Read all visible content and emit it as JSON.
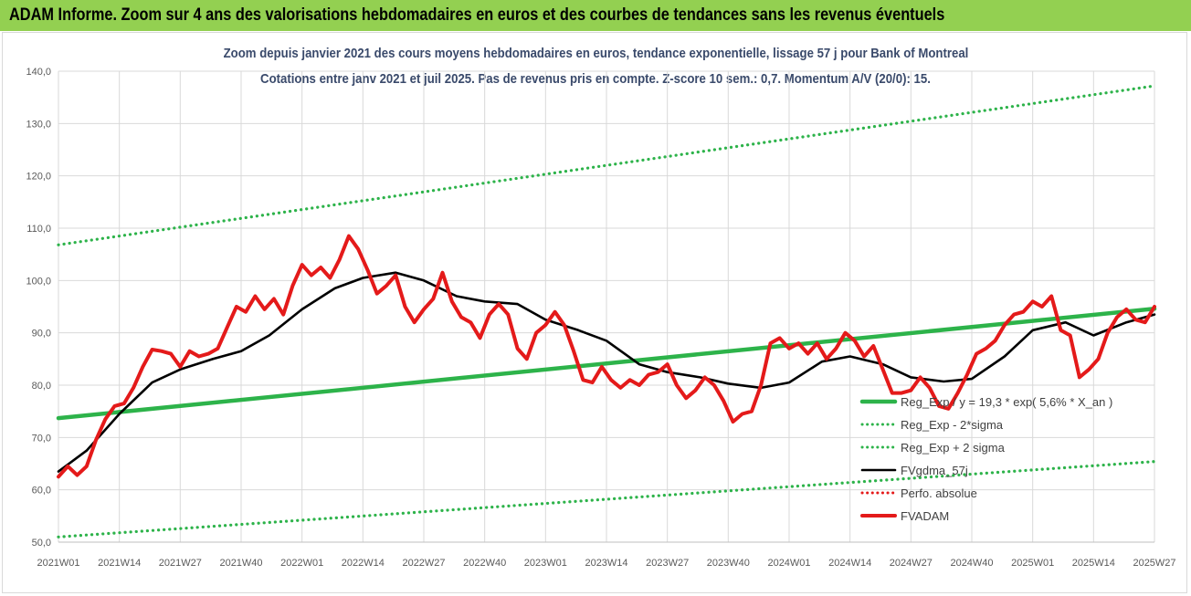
{
  "header": {
    "title": "ADAM Informe. Zoom sur 4 ans des valorisations hebdomadaires en euros et des courbes de tendances sans les revenus éventuels"
  },
  "chart_data": {
    "type": "line",
    "title": "Zoom depuis janvier 2021 des cours moyens hebdomadaires en euros, tendance exponentielle, lissage 57 j pour Bank of Montreal",
    "subtitle": "Cotations entre janv 2021 et juil 2025. Pas de revenus pris en compte. Z-score 10 sem.: 0,7. Momentum A/V (20/0): 15.",
    "xlabel": "",
    "ylabel": "",
    "ylim": [
      50,
      140
    ],
    "y_ticks": [
      "50,0",
      "60,0",
      "70,0",
      "80,0",
      "90,0",
      "100,0",
      "110,0",
      "120,0",
      "130,0",
      "140,0"
    ],
    "x_ticks": [
      "2021W01",
      "2021W14",
      "2021W27",
      "2021W40",
      "2022W01",
      "2022W14",
      "2022W27",
      "2022W40",
      "2023W01",
      "2023W14",
      "2023W27",
      "2023W40",
      "2024W01",
      "2024W14",
      "2024W27",
      "2024W40",
      "2025W01",
      "2025W14",
      "2025W27"
    ],
    "n_weeks": 235,
    "grid": true,
    "legend_position": "bottom-right",
    "series": [
      {
        "name": "Reg_Exp / y = 19,3 * exp( 5,6% * X_an )",
        "color": "#2db34a",
        "style": "solid",
        "x": [
          0,
          234
        ],
        "values": [
          73.7,
          94.6
        ]
      },
      {
        "name": "Reg_Exp - 2*sigma",
        "color": "#2db34a",
        "style": "dotted",
        "x": [
          0,
          234
        ],
        "values": [
          51.0,
          65.4
        ]
      },
      {
        "name": "Reg_Exp + 2 sigma",
        "color": "#2db34a",
        "style": "dotted",
        "x": [
          0,
          234
        ],
        "values": [
          106.8,
          137.2
        ]
      },
      {
        "name": "FVgdma_57j",
        "color": "#000000",
        "style": "solid",
        "x": [
          0,
          6,
          13,
          20,
          26,
          33,
          39,
          45,
          52,
          59,
          65,
          72,
          78,
          85,
          91,
          98,
          104,
          111,
          117,
          124,
          130,
          137,
          143,
          150,
          156,
          163,
          169,
          176,
          182,
          189,
          195,
          202,
          208,
          215,
          221,
          228,
          234
        ],
        "values": [
          63.5,
          67.5,
          74.5,
          80.5,
          83.0,
          85.0,
          86.5,
          89.5,
          94.5,
          98.5,
          100.5,
          101.5,
          100.0,
          97.0,
          96.0,
          95.5,
          92.5,
          90.5,
          88.5,
          84.0,
          82.5,
          81.5,
          80.3,
          79.5,
          80.5,
          84.5,
          85.5,
          84.0,
          81.5,
          80.7,
          81.2,
          85.5,
          90.5,
          92.0,
          89.5,
          92.0,
          93.5
        ]
      },
      {
        "name": "Perfo. absolue",
        "color": "#e41a1a",
        "style": "dotted",
        "x": [],
        "values": []
      },
      {
        "name": "FVADAM",
        "color": "#e41a1a",
        "style": "solid",
        "x": [
          0,
          2,
          4,
          6,
          8,
          10,
          12,
          14,
          16,
          18,
          20,
          22,
          24,
          26,
          28,
          30,
          32,
          34,
          36,
          38,
          40,
          42,
          44,
          46,
          48,
          50,
          52,
          54,
          56,
          58,
          60,
          62,
          64,
          66,
          68,
          70,
          72,
          74,
          76,
          78,
          80,
          82,
          84,
          86,
          88,
          90,
          92,
          94,
          96,
          98,
          100,
          102,
          104,
          106,
          108,
          110,
          112,
          114,
          116,
          118,
          120,
          122,
          124,
          126,
          128,
          130,
          132,
          134,
          136,
          138,
          140,
          142,
          144,
          146,
          148,
          150,
          152,
          154,
          156,
          158,
          160,
          162,
          164,
          166,
          168,
          170,
          172,
          174,
          176,
          178,
          180,
          182,
          184,
          186,
          188,
          190,
          192,
          194,
          196,
          198,
          200,
          202,
          204,
          206,
          208,
          210,
          212,
          214,
          216,
          218,
          220,
          222,
          224,
          226,
          228,
          230,
          232,
          234
        ],
        "values": [
          62.5,
          64.5,
          62.8,
          64.5,
          69.5,
          73.5,
          76.0,
          76.5,
          79.5,
          83.5,
          86.8,
          86.5,
          86.0,
          83.5,
          86.5,
          85.5,
          86.0,
          87.0,
          91.0,
          95.0,
          94.0,
          97.0,
          94.5,
          96.5,
          93.5,
          99.0,
          103.0,
          101.0,
          102.5,
          100.5,
          104.0,
          108.5,
          106.0,
          102.0,
          97.5,
          99.0,
          101.0,
          95.0,
          92.0,
          94.5,
          96.5,
          101.5,
          96.0,
          93.0,
          92.0,
          89.0,
          93.5,
          95.5,
          93.5,
          87.0,
          85.0,
          90.0,
          91.5,
          94.0,
          91.5,
          86.5,
          81.0,
          80.5,
          83.5,
          81.0,
          79.5,
          81.0,
          80.0,
          82.0,
          82.5,
          84.0,
          80.0,
          77.5,
          79.0,
          81.5,
          80.0,
          77.0,
          73.0,
          74.5,
          75.0,
          80.0,
          88.0,
          89.0,
          87.0,
          88.0,
          86.0,
          88.0,
          85.0,
          87.0,
          90.0,
          88.5,
          85.5,
          87.5,
          83.0,
          78.5,
          78.5,
          79.0,
          81.5,
          79.5,
          76.0,
          75.5,
          78.5,
          82.0,
          86.0,
          87.0,
          88.5,
          91.5,
          93.5,
          94.0,
          96.0,
          95.0,
          97.0,
          90.5,
          89.5,
          81.5,
          83.0,
          85.0,
          90.0,
          93.0,
          94.5,
          92.5,
          92.0,
          95.0
        ]
      }
    ]
  }
}
